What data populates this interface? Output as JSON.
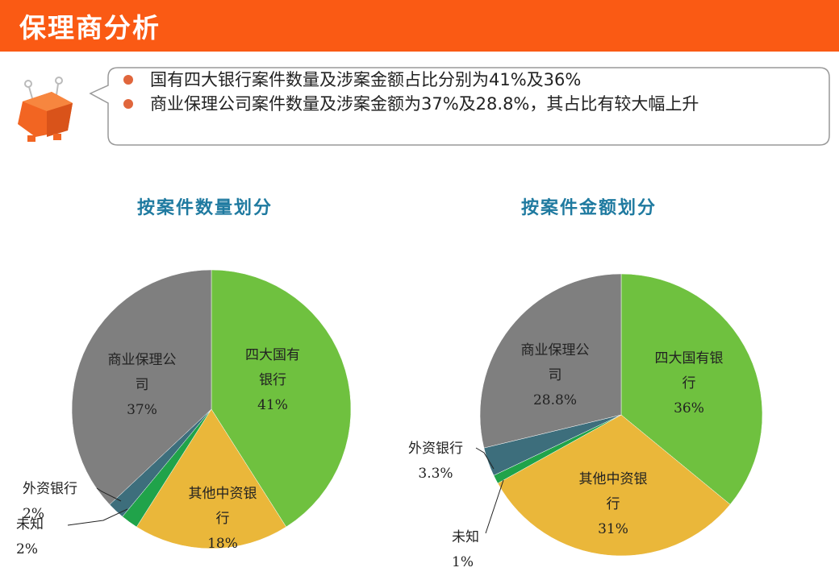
{
  "header": {
    "title": "保理商分析"
  },
  "summary": {
    "bullets": [
      "国有四大银行案件数量及涉案金额占比分别为41%及36%",
      "商业保理公司案件数量及涉案金额为37%及28.8%，其占比有较大幅上升"
    ]
  },
  "colors": {
    "header": "#fa5a14",
    "bullet": "#e0663c",
    "title": "#1f7aa0",
    "green": "#6fc13f",
    "yellow": "#eab73a",
    "dark_green": "#20a34a",
    "teal": "#3d6e7c",
    "gray": "#7f7f7f"
  },
  "chart_data": [
    {
      "type": "pie",
      "title": "按案件数量划分",
      "slices": [
        {
          "name": "四大国有银行",
          "value": 41,
          "label": "41%",
          "color": "#6fc13f"
        },
        {
          "name": "其他中资银行",
          "value": 18,
          "label": "18%",
          "color": "#eab73a"
        },
        {
          "name": "未知",
          "value": 2,
          "label": "2%",
          "color": "#20a34a"
        },
        {
          "name": "外资银行",
          "value": 2,
          "label": "2%",
          "color": "#3d6e7c"
        },
        {
          "name": "商业保理公司",
          "value": 37,
          "label": "37%",
          "color": "#7f7f7f"
        }
      ]
    },
    {
      "type": "pie",
      "title": "按案件金额划分",
      "slices": [
        {
          "name": "四大国有银行",
          "value": 36,
          "label": "36%",
          "color": "#6fc13f"
        },
        {
          "name": "其他中资银行",
          "value": 31,
          "label": "31%",
          "color": "#eab73a"
        },
        {
          "name": "未知",
          "value": 1,
          "label": "1%",
          "color": "#20a34a"
        },
        {
          "name": "外资银行",
          "value": 3.3,
          "label": "3.3%",
          "color": "#3d6e7c"
        },
        {
          "name": "商业保理公司",
          "value": 28.8,
          "label": "28.8%",
          "color": "#7f7f7f"
        }
      ]
    }
  ]
}
